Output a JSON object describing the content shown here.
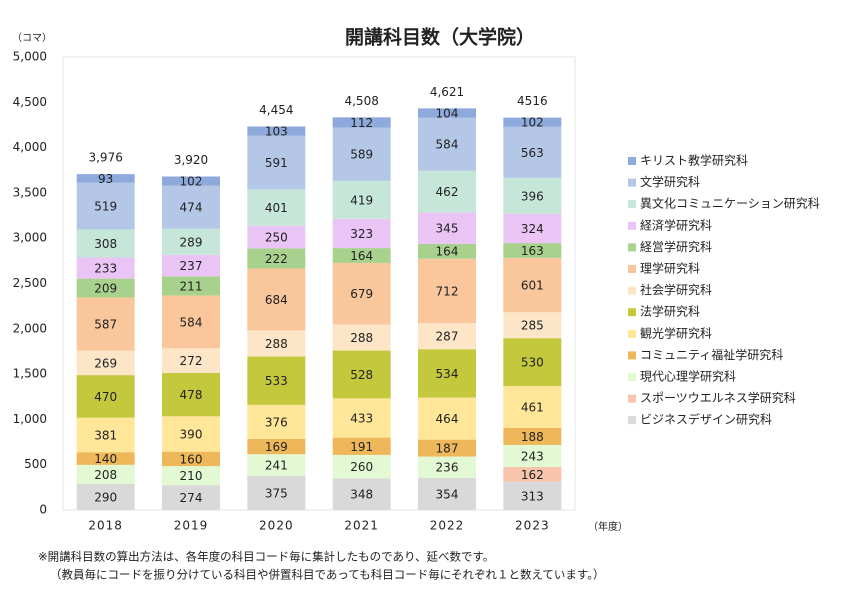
{
  "chart_data": {
    "type": "bar",
    "stacked": true,
    "title": "開講科目数（大学院）",
    "y_label": "（コマ）",
    "x_label": "（年度）",
    "categories": [
      "2018",
      "2019",
      "2020",
      "2021",
      "2022",
      "2023"
    ],
    "ylim": [
      0,
      5000
    ],
    "yticks": [
      0,
      500,
      {
        "value": 1000,
        "label": "1,000"
      },
      {
        "value": 1500,
        "label": "1,500"
      },
      {
        "value": 2000,
        "label": "2,000"
      },
      {
        "value": 2500,
        "label": "2,500"
      },
      {
        "value": 3000,
        "label": "3,000"
      },
      {
        "value": 3500,
        "label": "3,500"
      },
      {
        "value": 4000,
        "label": "4,000"
      },
      {
        "value": 4500,
        "label": "4,500"
      },
      {
        "value": 5000,
        "label": "5,000"
      }
    ],
    "grid": false,
    "legend": "right",
    "series": [
      {
        "name": "ビジネスデザイン研究科",
        "color": "#d9d9d9",
        "values": [
          290,
          274,
          375,
          348,
          354,
          313
        ]
      },
      {
        "name": "スポーツウエルネス学研究科",
        "color": "#f8c4ac",
        "values": [
          null,
          null,
          null,
          null,
          null,
          162
        ]
      },
      {
        "name": "現代心理学研究科",
        "color": "#e2f9d3",
        "values": [
          208,
          210,
          241,
          260,
          236,
          243
        ]
      },
      {
        "name": "コミュニティ福祉学研究科",
        "color": "#eeb85a",
        "values": [
          140,
          160,
          169,
          191,
          187,
          188
        ]
      },
      {
        "name": "観光学研究科",
        "color": "#ffe699",
        "values": [
          381,
          390,
          376,
          433,
          464,
          461
        ]
      },
      {
        "name": "法学研究科",
        "color": "#c4c83d",
        "values": [
          470,
          478,
          533,
          528,
          534,
          530
        ]
      },
      {
        "name": "社会学研究科",
        "color": "#fde6c8",
        "values": [
          269,
          272,
          288,
          288,
          287,
          285
        ]
      },
      {
        "name": "理学研究科",
        "color": "#f9c79b",
        "values": [
          587,
          584,
          684,
          679,
          712,
          601
        ]
      },
      {
        "name": "経営学研究科",
        "color": "#a9d18e",
        "values": [
          209,
          211,
          222,
          164,
          164,
          163
        ]
      },
      {
        "name": "経済学研究科",
        "color": "#ebc4f6",
        "values": [
          233,
          237,
          250,
          323,
          345,
          324
        ]
      },
      {
        "name": "異文化コミュニケーション研究科",
        "color": "#c5e6d8",
        "values": [
          308,
          289,
          401,
          419,
          462,
          396
        ]
      },
      {
        "name": "文学研究科",
        "color": "#b4c7e7",
        "values": [
          519,
          474,
          591,
          589,
          584,
          563
        ]
      },
      {
        "name": "キリスト教学研究科",
        "color": "#8eaadc",
        "values": [
          93,
          102,
          103,
          112,
          104,
          102
        ]
      }
    ],
    "totals": {
      "values": [
        3976,
        3920,
        4454,
        4508,
        4621,
        4516
      ],
      "value_labels": [
        "3,976",
        "3,920",
        "4,454",
        "4,508",
        "4,621",
        "4516"
      ]
    },
    "notes": [
      "※開講科目数の算出方法は、各年度の科目コード毎に集計したものであり、延べ数です。",
      "（教員毎にコードを振り分けている科目や併置科目であっても科目コード毎にそれぞれ１と数えています。）"
    ]
  }
}
